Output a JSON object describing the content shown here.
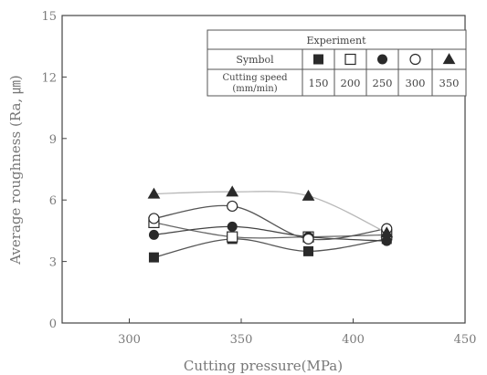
{
  "chart_data": {
    "type": "scatter",
    "xlabel": "Cutting pressure(MPa)",
    "ylabel": "Average roughness (Ra, ㎛)",
    "xlim": [
      270,
      450
    ],
    "ylim": [
      0,
      15
    ],
    "xticks": [
      300,
      350,
      400,
      450
    ],
    "yticks": [
      0,
      3,
      6,
      9,
      12,
      15
    ],
    "x": [
      311,
      346,
      380,
      415
    ],
    "grid": false,
    "legend": {
      "title": "Experiment",
      "row1_label": "Symbol",
      "row2_label_line1": "Cutting speed",
      "row2_label_line2": "(mm/min)",
      "placement": "top-right"
    },
    "series": [
      {
        "speed": "150",
        "marker": "square-filled",
        "values": [
          3.2,
          4.1,
          3.5,
          4.1
        ],
        "color": "#2a2a2a"
      },
      {
        "speed": "200",
        "marker": "square-open",
        "values": [
          4.9,
          4.2,
          4.2,
          4.3
        ],
        "color": "#2a2a2a"
      },
      {
        "speed": "250",
        "marker": "circle-filled",
        "values": [
          4.3,
          4.7,
          4.2,
          4.0
        ],
        "color": "#2a2a2a"
      },
      {
        "speed": "300",
        "marker": "circle-open",
        "values": [
          5.1,
          5.7,
          4.1,
          4.6
        ],
        "color": "#2a2a2a"
      },
      {
        "speed": "350",
        "marker": "triangle-filled",
        "values": [
          6.3,
          6.4,
          6.2,
          4.4
        ],
        "color": "#2a2a2a"
      }
    ]
  }
}
